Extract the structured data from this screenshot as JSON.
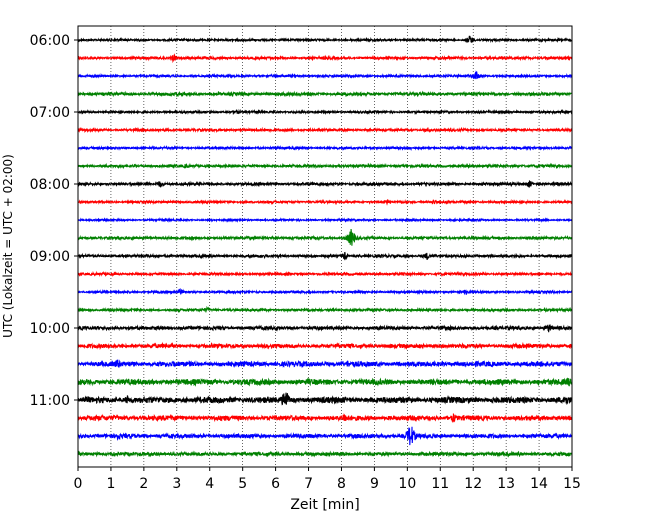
{
  "chart_data": {
    "type": "line",
    "title": "",
    "xlabel": "Zeit  [min]",
    "ylabel": "UTC (Lokalzeit = UTC + 02:00)",
    "xlim": [
      0,
      15
    ],
    "xticks": [
      "0",
      "1",
      "2",
      "3",
      "4",
      "5",
      "6",
      "7",
      "8",
      "9",
      "10",
      "11",
      "12",
      "13",
      "14",
      "15"
    ],
    "yticks": [
      "06:00",
      "07:00",
      "08:00",
      "09:00",
      "10:00",
      "11:00"
    ],
    "grid": "vertical-dotted",
    "colors": [
      "#000000",
      "#ff0000",
      "#0000ff",
      "#008000"
    ],
    "traces": [
      {
        "start": "06:00",
        "color": "#000000",
        "amplitude": 1.0,
        "events": [
          {
            "x": 11.9,
            "amp": 5
          }
        ]
      },
      {
        "start": "06:15",
        "color": "#ff0000",
        "amplitude": 1.2,
        "events": [
          {
            "x": 2.9,
            "amp": 4
          }
        ]
      },
      {
        "start": "06:30",
        "color": "#0000ff",
        "amplitude": 1.0,
        "events": [
          {
            "x": 12.1,
            "amp": 5
          }
        ]
      },
      {
        "start": "06:45",
        "color": "#008000",
        "amplitude": 1.4,
        "events": []
      },
      {
        "start": "07:00",
        "color": "#000000",
        "amplitude": 1.0,
        "events": [
          {
            "x": 4.8,
            "amp": 3
          }
        ]
      },
      {
        "start": "07:15",
        "color": "#ff0000",
        "amplitude": 1.1,
        "events": [
          {
            "x": 10.6,
            "amp": 3
          }
        ]
      },
      {
        "start": "07:30",
        "color": "#0000ff",
        "amplitude": 1.0,
        "events": []
      },
      {
        "start": "07:45",
        "color": "#008000",
        "amplitude": 1.2,
        "events": [
          {
            "x": 3.3,
            "amp": 3
          }
        ]
      },
      {
        "start": "08:00",
        "color": "#000000",
        "amplitude": 1.2,
        "events": [
          {
            "x": 2.5,
            "amp": 4
          },
          {
            "x": 13.7,
            "amp": 4
          }
        ]
      },
      {
        "start": "08:15",
        "color": "#ff0000",
        "amplitude": 1.0,
        "events": [
          {
            "x": 9.4,
            "amp": 3
          },
          {
            "x": 10.8,
            "amp": 3
          }
        ]
      },
      {
        "start": "08:30",
        "color": "#0000ff",
        "amplitude": 0.8,
        "events": []
      },
      {
        "start": "08:45",
        "color": "#008000",
        "amplitude": 1.2,
        "events": [
          {
            "x": 8.3,
            "amp": 10
          }
        ]
      },
      {
        "start": "09:00",
        "color": "#000000",
        "amplitude": 1.2,
        "events": [
          {
            "x": 8.1,
            "amp": 4
          },
          {
            "x": 10.6,
            "amp": 4
          }
        ]
      },
      {
        "start": "09:15",
        "color": "#ff0000",
        "amplitude": 1.1,
        "events": []
      },
      {
        "start": "09:30",
        "color": "#0000ff",
        "amplitude": 1.0,
        "events": [
          {
            "x": 3.1,
            "amp": 3
          },
          {
            "x": 11.8,
            "amp": 3
          }
        ]
      },
      {
        "start": "09:45",
        "color": "#008000",
        "amplitude": 1.1,
        "events": [
          {
            "x": 3.9,
            "amp": 3
          }
        ]
      },
      {
        "start": "10:00",
        "color": "#000000",
        "amplitude": 1.6,
        "events": [
          {
            "x": 14.3,
            "amp": 5
          }
        ]
      },
      {
        "start": "10:15",
        "color": "#ff0000",
        "amplitude": 1.9,
        "events": []
      },
      {
        "start": "10:30",
        "color": "#0000ff",
        "amplitude": 2.3,
        "events": [
          {
            "x": 1.2,
            "amp": 6
          },
          {
            "x": 8.2,
            "amp": 4
          }
        ]
      },
      {
        "start": "10:45",
        "color": "#008000",
        "amplitude": 2.6,
        "events": [
          {
            "x": 14.9,
            "amp": 5
          }
        ]
      },
      {
        "start": "11:00",
        "color": "#000000",
        "amplitude": 2.8,
        "events": [
          {
            "x": 1.5,
            "amp": 5
          },
          {
            "x": 6.3,
            "amp": 12
          },
          {
            "x": 14.8,
            "amp": 7
          }
        ]
      },
      {
        "start": "11:15",
        "color": "#ff0000",
        "amplitude": 2.3,
        "events": [
          {
            "x": 8.1,
            "amp": 6
          },
          {
            "x": 11.4,
            "amp": 5
          }
        ]
      },
      {
        "start": "11:30",
        "color": "#0000ff",
        "amplitude": 1.9,
        "events": [
          {
            "x": 10.1,
            "amp": 14
          },
          {
            "x": 1.2,
            "amp": 4
          }
        ]
      },
      {
        "start": "11:45",
        "color": "#008000",
        "amplitude": 1.6,
        "events": [
          {
            "x": 1.1,
            "amp": 3
          }
        ]
      }
    ]
  }
}
